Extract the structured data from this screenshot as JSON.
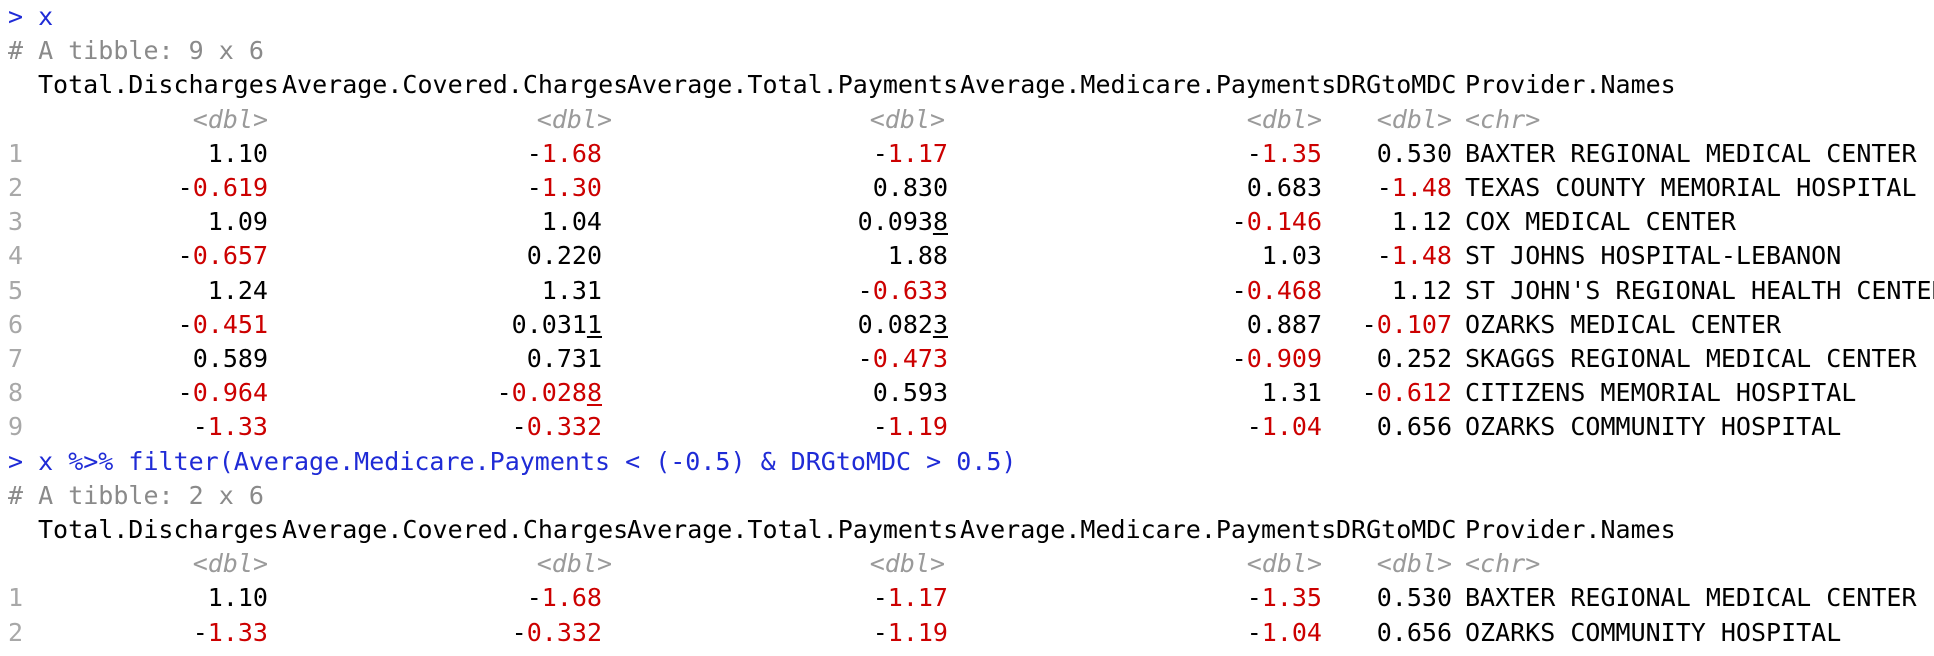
{
  "console": {
    "lines": [
      {
        "kind": "prompt",
        "text": "> x"
      },
      {
        "kind": "comment",
        "text": "# A tibble: 9 x 6"
      },
      {
        "kind": "header",
        "cols": [
          "Total.Discharges",
          "Average.Covered.Charges",
          "Average.Total.Payments",
          "Average.Medicare.Payments",
          "DRGtoMDC",
          "Provider.Names"
        ]
      },
      {
        "kind": "types",
        "cols": [
          "<dbl>",
          "<dbl>",
          "<dbl>",
          "<dbl>",
          "<dbl>",
          "<chr>"
        ]
      },
      {
        "kind": "row",
        "num": "1",
        "vals": [
          {
            "text": "1.10",
            "neg": false
          },
          {
            "text": "-1.68",
            "neg": true
          },
          {
            "text": "-1.17",
            "neg": true
          },
          {
            "text": "-1.35",
            "neg": true
          },
          {
            "text": "0.530",
            "neg": false
          },
          {
            "text": "BAXTER REGIONAL MEDICAL CENTER",
            "neg": false
          }
        ]
      },
      {
        "kind": "row",
        "num": "2",
        "vals": [
          {
            "text": "-0.619",
            "neg": true
          },
          {
            "text": "-1.30",
            "neg": true
          },
          {
            "text": "0.830",
            "neg": false
          },
          {
            "text": "0.683",
            "neg": false
          },
          {
            "text": "-1.48",
            "neg": true
          },
          {
            "text": "TEXAS COUNTY MEMORIAL HOSPITAL",
            "neg": false
          }
        ]
      },
      {
        "kind": "row",
        "num": "3",
        "vals": [
          {
            "text": "1.09",
            "neg": false
          },
          {
            "text": "1.04",
            "neg": false
          },
          {
            "text": "0.0938",
            "neg": false,
            "underline_last": true
          },
          {
            "text": "-0.146",
            "neg": true
          },
          {
            "text": "1.12",
            "neg": false
          },
          {
            "text": "COX MEDICAL CENTER",
            "neg": false
          }
        ]
      },
      {
        "kind": "row",
        "num": "4",
        "vals": [
          {
            "text": "-0.657",
            "neg": true
          },
          {
            "text": "0.220",
            "neg": false
          },
          {
            "text": "1.88",
            "neg": false
          },
          {
            "text": "1.03",
            "neg": false
          },
          {
            "text": "-1.48",
            "neg": true
          },
          {
            "text": "ST JOHNS HOSPITAL-LEBANON",
            "neg": false
          }
        ]
      },
      {
        "kind": "row",
        "num": "5",
        "vals": [
          {
            "text": "1.24",
            "neg": false
          },
          {
            "text": "1.31",
            "neg": false
          },
          {
            "text": "-0.633",
            "neg": true
          },
          {
            "text": "-0.468",
            "neg": true
          },
          {
            "text": "1.12",
            "neg": false
          },
          {
            "text": "ST JOHN'S REGIONAL HEALTH CENTER",
            "neg": false
          }
        ]
      },
      {
        "kind": "row",
        "num": "6",
        "vals": [
          {
            "text": "-0.451",
            "neg": true
          },
          {
            "text": "0.0311",
            "neg": false,
            "underline_last": true
          },
          {
            "text": "0.0823",
            "neg": false,
            "underline_last": true
          },
          {
            "text": "0.887",
            "neg": false
          },
          {
            "text": "-0.107",
            "neg": true
          },
          {
            "text": "OZARKS MEDICAL CENTER",
            "neg": false
          }
        ]
      },
      {
        "kind": "row",
        "num": "7",
        "vals": [
          {
            "text": "0.589",
            "neg": false
          },
          {
            "text": "0.731",
            "neg": false
          },
          {
            "text": "-0.473",
            "neg": true
          },
          {
            "text": "-0.909",
            "neg": true
          },
          {
            "text": "0.252",
            "neg": false
          },
          {
            "text": "SKAGGS REGIONAL MEDICAL CENTER",
            "neg": false
          }
        ]
      },
      {
        "kind": "row",
        "num": "8",
        "vals": [
          {
            "text": "-0.964",
            "neg": true
          },
          {
            "text": "-0.0288",
            "neg": true,
            "underline_last": true
          },
          {
            "text": "0.593",
            "neg": false
          },
          {
            "text": "1.31",
            "neg": false
          },
          {
            "text": "-0.612",
            "neg": true
          },
          {
            "text": "CITIZENS MEMORIAL HOSPITAL",
            "neg": false
          }
        ]
      },
      {
        "kind": "row",
        "num": "9",
        "vals": [
          {
            "text": "-1.33",
            "neg": true
          },
          {
            "text": "-0.332",
            "neg": true
          },
          {
            "text": "-1.19",
            "neg": true
          },
          {
            "text": "-1.04",
            "neg": true
          },
          {
            "text": "0.656",
            "neg": false
          },
          {
            "text": "OZARKS COMMUNITY HOSPITAL",
            "neg": false
          }
        ]
      },
      {
        "kind": "prompt",
        "text": "> x %>% filter(Average.Medicare.Payments < (-0.5) & DRGtoMDC > 0.5)"
      },
      {
        "kind": "comment",
        "text": "# A tibble: 2 x 6"
      },
      {
        "kind": "header",
        "cols": [
          "Total.Discharges",
          "Average.Covered.Charges",
          "Average.Total.Payments",
          "Average.Medicare.Payments",
          "DRGtoMDC",
          "Provider.Names"
        ]
      },
      {
        "kind": "types",
        "cols": [
          "<dbl>",
          "<dbl>",
          "<dbl>",
          "<dbl>",
          "<dbl>",
          "<chr>"
        ]
      },
      {
        "kind": "row",
        "num": "1",
        "vals": [
          {
            "text": "1.10",
            "neg": false
          },
          {
            "text": "-1.68",
            "neg": true
          },
          {
            "text": "-1.17",
            "neg": true
          },
          {
            "text": "-1.35",
            "neg": true
          },
          {
            "text": "0.530",
            "neg": false
          },
          {
            "text": "BAXTER REGIONAL MEDICAL CENTER",
            "neg": false
          }
        ]
      },
      {
        "kind": "row",
        "num": "2",
        "vals": [
          {
            "text": "-1.33",
            "neg": true
          },
          {
            "text": "-0.332",
            "neg": true
          },
          {
            "text": "-1.19",
            "neg": true
          },
          {
            "text": "-1.04",
            "neg": true
          },
          {
            "text": "0.656",
            "neg": false
          },
          {
            "text": "OZARKS COMMUNITY HOSPITAL",
            "neg": false
          }
        ]
      }
    ]
  }
}
